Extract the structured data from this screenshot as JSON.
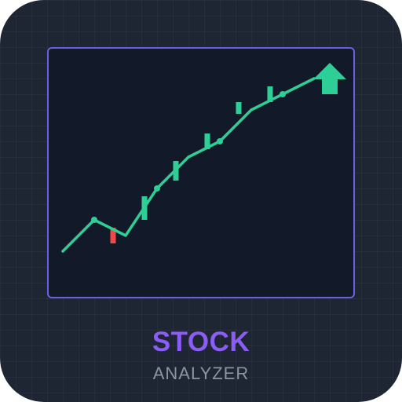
{
  "app": {
    "title": "STOCK",
    "subtitle": "ANALYZER"
  },
  "colors": {
    "background": "#1f2633",
    "panel": "#121a29",
    "panel_border": "#6a5fe0",
    "up": "#2ecf96",
    "down": "#f04747",
    "title": "#8b5cf6",
    "subtitle": "#8c93a1"
  },
  "icons": {
    "trend_arrow": "arrow-up-icon"
  },
  "chart_data": {
    "type": "line",
    "xlim": [
      0,
      8.25
    ],
    "ylim": [
      0,
      10
    ],
    "line": [
      {
        "x": 0,
        "y": 0
      },
      {
        "x": 1,
        "y": 1
      },
      {
        "x": 2,
        "y": 0.5
      },
      {
        "x": 3,
        "y": 2
      },
      {
        "x": 4,
        "y": 3
      },
      {
        "x": 5,
        "y": 3.5
      },
      {
        "x": 6,
        "y": 4.5
      },
      {
        "x": 7,
        "y": 5
      },
      {
        "x": 8,
        "y": 5.5
      }
    ],
    "points": [
      {
        "x": 1,
        "y": 1
      },
      {
        "x": 3,
        "y": 2
      },
      {
        "x": 5,
        "y": 3.5
      },
      {
        "x": 7,
        "y": 5
      }
    ],
    "candles": [
      {
        "x": 1.6,
        "low": 0.25,
        "high": 0.75,
        "direction": "down"
      },
      {
        "x": 2.6,
        "low": 1.0,
        "high": 1.75,
        "direction": "up"
      },
      {
        "x": 3.6,
        "low": 2.25,
        "high": 2.875,
        "direction": "up"
      },
      {
        "x": 4.6,
        "low": 3.25,
        "high": 3.75,
        "direction": "up"
      },
      {
        "x": 5.6,
        "low": 4.375,
        "high": 4.75,
        "direction": "up"
      },
      {
        "x": 6.6,
        "low": 4.75,
        "high": 5.25,
        "direction": "up"
      }
    ]
  }
}
